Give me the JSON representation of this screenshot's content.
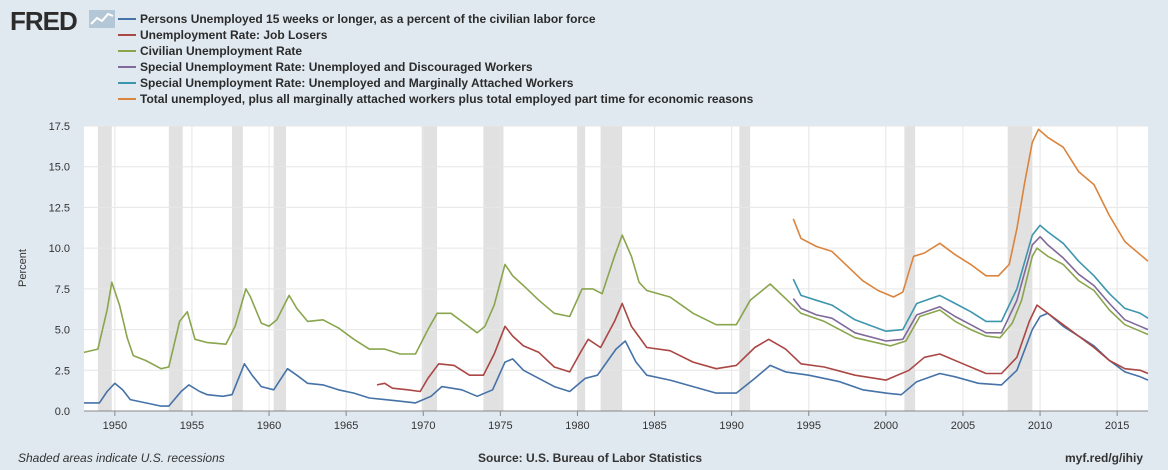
{
  "header": {
    "logo_text": "FRED"
  },
  "footer": {
    "recession_note": "Shaded areas indicate U.S. recessions",
    "source": "Source: U.S. Bureau of Labor Statistics",
    "link": "myf.red/g/ihiy"
  },
  "chart_data": {
    "type": "line",
    "ylabel": "Percent",
    "ylim": [
      0,
      17.5
    ],
    "xlim": [
      1948.0,
      2017.0
    ],
    "yticks": [
      "0.0",
      "2.5",
      "5.0",
      "7.5",
      "10.0",
      "12.5",
      "15.0",
      "17.5"
    ],
    "xticks": [
      "1950",
      "1955",
      "1960",
      "1965",
      "1970",
      "1975",
      "1980",
      "1985",
      "1990",
      "1995",
      "2000",
      "2005",
      "2010",
      "2015"
    ],
    "grid": true,
    "legend_position": "top-left",
    "recessions": [
      [
        1948.9,
        1949.8
      ],
      [
        1953.5,
        1954.4
      ],
      [
        1957.6,
        1958.3
      ],
      [
        1960.3,
        1961.1
      ],
      [
        1969.9,
        1970.9
      ],
      [
        1973.9,
        1975.2
      ],
      [
        1980.0,
        1980.5
      ],
      [
        1981.5,
        1982.9
      ],
      [
        1990.5,
        1991.2
      ],
      [
        2001.2,
        2001.9
      ],
      [
        2007.9,
        2009.5
      ]
    ],
    "series": [
      {
        "name": "Persons Unemployed 15 weeks or longer, as a percent of the civilian labor force",
        "color": "#4572a7",
        "points": [
          [
            1948,
            0.5
          ],
          [
            1949.0,
            0.5
          ],
          [
            1949.5,
            1.2
          ],
          [
            1950.0,
            1.7
          ],
          [
            1950.5,
            1.3
          ],
          [
            1951.0,
            0.7
          ],
          [
            1952,
            0.5
          ],
          [
            1953,
            0.3
          ],
          [
            1953.5,
            0.3
          ],
          [
            1954.3,
            1.2
          ],
          [
            1954.8,
            1.6
          ],
          [
            1955.5,
            1.2
          ],
          [
            1956,
            1.0
          ],
          [
            1957,
            0.9
          ],
          [
            1957.6,
            1.0
          ],
          [
            1958.4,
            2.9
          ],
          [
            1958.9,
            2.2
          ],
          [
            1959.5,
            1.5
          ],
          [
            1960.3,
            1.3
          ],
          [
            1961.2,
            2.6
          ],
          [
            1961.8,
            2.2
          ],
          [
            1962.5,
            1.7
          ],
          [
            1963.5,
            1.6
          ],
          [
            1964.5,
            1.3
          ],
          [
            1965.5,
            1.1
          ],
          [
            1966.5,
            0.8
          ],
          [
            1967.5,
            0.7
          ],
          [
            1968.5,
            0.6
          ],
          [
            1969.5,
            0.5
          ],
          [
            1970.5,
            0.9
          ],
          [
            1971.2,
            1.5
          ],
          [
            1972.5,
            1.3
          ],
          [
            1973.5,
            0.9
          ],
          [
            1974.5,
            1.3
          ],
          [
            1975.3,
            3.0
          ],
          [
            1975.8,
            3.2
          ],
          [
            1976.5,
            2.5
          ],
          [
            1977.5,
            2.0
          ],
          [
            1978.5,
            1.5
          ],
          [
            1979.5,
            1.2
          ],
          [
            1980.5,
            2.0
          ],
          [
            1981.3,
            2.2
          ],
          [
            1982.5,
            3.8
          ],
          [
            1983.1,
            4.3
          ],
          [
            1983.8,
            3.0
          ],
          [
            1984.5,
            2.2
          ],
          [
            1986,
            1.9
          ],
          [
            1987.5,
            1.5
          ],
          [
            1989,
            1.1
          ],
          [
            1990.3,
            1.1
          ],
          [
            1991.5,
            2.0
          ],
          [
            1992.5,
            2.8
          ],
          [
            1993.5,
            2.4
          ],
          [
            1995,
            2.2
          ],
          [
            1997,
            1.8
          ],
          [
            1998.5,
            1.3
          ],
          [
            2000,
            1.1
          ],
          [
            2001,
            1.0
          ],
          [
            2002,
            1.8
          ],
          [
            2003.5,
            2.3
          ],
          [
            2004.5,
            2.1
          ],
          [
            2006,
            1.7
          ],
          [
            2007.5,
            1.6
          ],
          [
            2008.5,
            2.5
          ],
          [
            2009.5,
            5.0
          ],
          [
            2010.0,
            5.8
          ],
          [
            2010.5,
            6.0
          ],
          [
            2011.5,
            5.2
          ],
          [
            2012.5,
            4.6
          ],
          [
            2013.5,
            4.0
          ],
          [
            2014.5,
            3.1
          ],
          [
            2015.5,
            2.4
          ],
          [
            2016.5,
            2.1
          ],
          [
            2017,
            1.9
          ]
        ]
      },
      {
        "name": "Unemployment Rate: Job Losers",
        "color": "#aa4643",
        "points": [
          [
            1967.0,
            1.6
          ],
          [
            1967.5,
            1.7
          ],
          [
            1968,
            1.4
          ],
          [
            1969,
            1.3
          ],
          [
            1969.8,
            1.2
          ],
          [
            1970.3,
            2.0
          ],
          [
            1971.0,
            2.9
          ],
          [
            1972,
            2.8
          ],
          [
            1973,
            2.2
          ],
          [
            1973.9,
            2.2
          ],
          [
            1974.6,
            3.5
          ],
          [
            1975.3,
            5.2
          ],
          [
            1975.8,
            4.6
          ],
          [
            1976.5,
            4.0
          ],
          [
            1977.5,
            3.6
          ],
          [
            1978.5,
            2.7
          ],
          [
            1979.5,
            2.4
          ],
          [
            1980.2,
            3.6
          ],
          [
            1980.7,
            4.4
          ],
          [
            1981.5,
            3.9
          ],
          [
            1982.4,
            5.5
          ],
          [
            1982.9,
            6.6
          ],
          [
            1983.5,
            5.2
          ],
          [
            1984.5,
            3.9
          ],
          [
            1986,
            3.7
          ],
          [
            1987.5,
            3.0
          ],
          [
            1989,
            2.6
          ],
          [
            1990.3,
            2.8
          ],
          [
            1991.5,
            3.9
          ],
          [
            1992.4,
            4.4
          ],
          [
            1993.5,
            3.8
          ],
          [
            1994.5,
            2.9
          ],
          [
            1996,
            2.7
          ],
          [
            1998,
            2.2
          ],
          [
            2000,
            1.9
          ],
          [
            2001.5,
            2.5
          ],
          [
            2002.5,
            3.3
          ],
          [
            2003.5,
            3.5
          ],
          [
            2005,
            2.9
          ],
          [
            2006.5,
            2.3
          ],
          [
            2007.5,
            2.3
          ],
          [
            2008.5,
            3.3
          ],
          [
            2009.3,
            5.5
          ],
          [
            2009.8,
            6.5
          ],
          [
            2010.5,
            6.0
          ],
          [
            2011.5,
            5.3
          ],
          [
            2012.5,
            4.6
          ],
          [
            2013.5,
            3.9
          ],
          [
            2014.5,
            3.1
          ],
          [
            2015.5,
            2.6
          ],
          [
            2016.5,
            2.5
          ],
          [
            2017,
            2.3
          ]
        ]
      },
      {
        "name": "Civilian Unemployment Rate",
        "color": "#89a54e",
        "points": [
          [
            1948,
            3.6
          ],
          [
            1948.9,
            3.8
          ],
          [
            1949.5,
            6.2
          ],
          [
            1949.8,
            7.9
          ],
          [
            1950.3,
            6.5
          ],
          [
            1950.8,
            4.5
          ],
          [
            1951.2,
            3.4
          ],
          [
            1952,
            3.1
          ],
          [
            1953.0,
            2.6
          ],
          [
            1953.5,
            2.7
          ],
          [
            1954.2,
            5.5
          ],
          [
            1954.7,
            6.1
          ],
          [
            1955.2,
            4.4
          ],
          [
            1956,
            4.2
          ],
          [
            1957.2,
            4.1
          ],
          [
            1957.8,
            5.2
          ],
          [
            1958.5,
            7.5
          ],
          [
            1958.8,
            7.0
          ],
          [
            1959.5,
            5.4
          ],
          [
            1960.0,
            5.2
          ],
          [
            1960.5,
            5.6
          ],
          [
            1961.3,
            7.1
          ],
          [
            1961.8,
            6.3
          ],
          [
            1962.5,
            5.5
          ],
          [
            1963.5,
            5.6
          ],
          [
            1964.5,
            5.1
          ],
          [
            1965.5,
            4.4
          ],
          [
            1966.5,
            3.8
          ],
          [
            1967.5,
            3.8
          ],
          [
            1968.5,
            3.5
          ],
          [
            1969.5,
            3.5
          ],
          [
            1970.3,
            5.0
          ],
          [
            1970.9,
            6.0
          ],
          [
            1971.8,
            6.0
          ],
          [
            1972.5,
            5.5
          ],
          [
            1973.5,
            4.8
          ],
          [
            1974.0,
            5.2
          ],
          [
            1974.6,
            6.5
          ],
          [
            1975.3,
            9.0
          ],
          [
            1975.8,
            8.3
          ],
          [
            1976.5,
            7.7
          ],
          [
            1977.5,
            6.8
          ],
          [
            1978.5,
            6.0
          ],
          [
            1979.5,
            5.8
          ],
          [
            1980.3,
            7.5
          ],
          [
            1981.0,
            7.5
          ],
          [
            1981.6,
            7.2
          ],
          [
            1982.4,
            9.5
          ],
          [
            1982.9,
            10.8
          ],
          [
            1983.5,
            9.5
          ],
          [
            1984.0,
            7.9
          ],
          [
            1984.5,
            7.4
          ],
          [
            1986,
            7.0
          ],
          [
            1987.5,
            6.0
          ],
          [
            1989,
            5.3
          ],
          [
            1990.3,
            5.3
          ],
          [
            1991.2,
            6.8
          ],
          [
            1992.5,
            7.8
          ],
          [
            1993.5,
            6.9
          ],
          [
            1994.5,
            6.0
          ],
          [
            1996,
            5.5
          ],
          [
            1998,
            4.5
          ],
          [
            2000.3,
            4.0
          ],
          [
            2001.3,
            4.3
          ],
          [
            2002.2,
            5.8
          ],
          [
            2003.5,
            6.2
          ],
          [
            2004.5,
            5.5
          ],
          [
            2005.5,
            5.0
          ],
          [
            2006.5,
            4.6
          ],
          [
            2007.4,
            4.5
          ],
          [
            2008.2,
            5.4
          ],
          [
            2008.8,
            6.8
          ],
          [
            2009.5,
            9.5
          ],
          [
            2009.8,
            10.0
          ],
          [
            2010.5,
            9.5
          ],
          [
            2011.5,
            9.0
          ],
          [
            2012.5,
            8.0
          ],
          [
            2013.5,
            7.4
          ],
          [
            2014.5,
            6.2
          ],
          [
            2015.5,
            5.3
          ],
          [
            2016.5,
            4.9
          ],
          [
            2017,
            4.7
          ]
        ]
      },
      {
        "name": "Special Unemployment Rate: Unemployed and Discouraged Workers",
        "color": "#80699b",
        "points": [
          [
            1994.0,
            6.9
          ],
          [
            1994.5,
            6.3
          ],
          [
            1995.5,
            5.9
          ],
          [
            1996.5,
            5.7
          ],
          [
            1998,
            4.8
          ],
          [
            2000.0,
            4.3
          ],
          [
            2001.1,
            4.4
          ],
          [
            2002.0,
            5.9
          ],
          [
            2003.5,
            6.4
          ],
          [
            2004.5,
            5.8
          ],
          [
            2005.5,
            5.3
          ],
          [
            2006.5,
            4.8
          ],
          [
            2007.5,
            4.8
          ],
          [
            2008.5,
            6.8
          ],
          [
            2009.5,
            10.2
          ],
          [
            2010.0,
            10.7
          ],
          [
            2010.5,
            10.2
          ],
          [
            2011.5,
            9.4
          ],
          [
            2012.5,
            8.4
          ],
          [
            2013.5,
            7.7
          ],
          [
            2014.5,
            6.6
          ],
          [
            2015.5,
            5.6
          ],
          [
            2016.5,
            5.2
          ],
          [
            2017,
            5.0
          ]
        ]
      },
      {
        "name": "Special Unemployment Rate: Unemployed and Marginally Attached Workers",
        "color": "#3d96ae",
        "points": [
          [
            1994.0,
            8.1
          ],
          [
            1994.5,
            7.1
          ],
          [
            1995.5,
            6.8
          ],
          [
            1996.5,
            6.5
          ],
          [
            1998,
            5.6
          ],
          [
            2000.0,
            4.9
          ],
          [
            2001.1,
            5.0
          ],
          [
            2002.0,
            6.6
          ],
          [
            2003.5,
            7.1
          ],
          [
            2004.5,
            6.6
          ],
          [
            2005.5,
            6.1
          ],
          [
            2006.5,
            5.5
          ],
          [
            2007.5,
            5.5
          ],
          [
            2008.5,
            7.5
          ],
          [
            2009.5,
            10.8
          ],
          [
            2010.0,
            11.4
          ],
          [
            2010.5,
            11.0
          ],
          [
            2011.5,
            10.3
          ],
          [
            2012.5,
            9.2
          ],
          [
            2013.5,
            8.3
          ],
          [
            2014.5,
            7.2
          ],
          [
            2015.5,
            6.3
          ],
          [
            2016.5,
            6.0
          ],
          [
            2017,
            5.7
          ]
        ]
      },
      {
        "name": "Total unemployed, plus all marginally attached workers plus total employed part time for economic reasons",
        "color": "#db843d",
        "points": [
          [
            1994.0,
            11.8
          ],
          [
            1994.5,
            10.6
          ],
          [
            1995.5,
            10.1
          ],
          [
            1996.5,
            9.8
          ],
          [
            1997.5,
            8.9
          ],
          [
            1998.5,
            8.0
          ],
          [
            1999.5,
            7.4
          ],
          [
            2000.5,
            7.0
          ],
          [
            2001.1,
            7.3
          ],
          [
            2001.8,
            9.5
          ],
          [
            2002.5,
            9.7
          ],
          [
            2003.5,
            10.3
          ],
          [
            2004.5,
            9.6
          ],
          [
            2005.5,
            9.0
          ],
          [
            2006.5,
            8.3
          ],
          [
            2007.3,
            8.3
          ],
          [
            2008.0,
            9.0
          ],
          [
            2008.5,
            11.2
          ],
          [
            2009.0,
            14.0
          ],
          [
            2009.5,
            16.5
          ],
          [
            2009.9,
            17.3
          ],
          [
            2010.5,
            16.8
          ],
          [
            2011.5,
            16.2
          ],
          [
            2012.5,
            14.7
          ],
          [
            2013.5,
            13.9
          ],
          [
            2014.5,
            12.0
          ],
          [
            2015.5,
            10.4
          ],
          [
            2016.5,
            9.6
          ],
          [
            2017,
            9.2
          ]
        ]
      }
    ]
  }
}
